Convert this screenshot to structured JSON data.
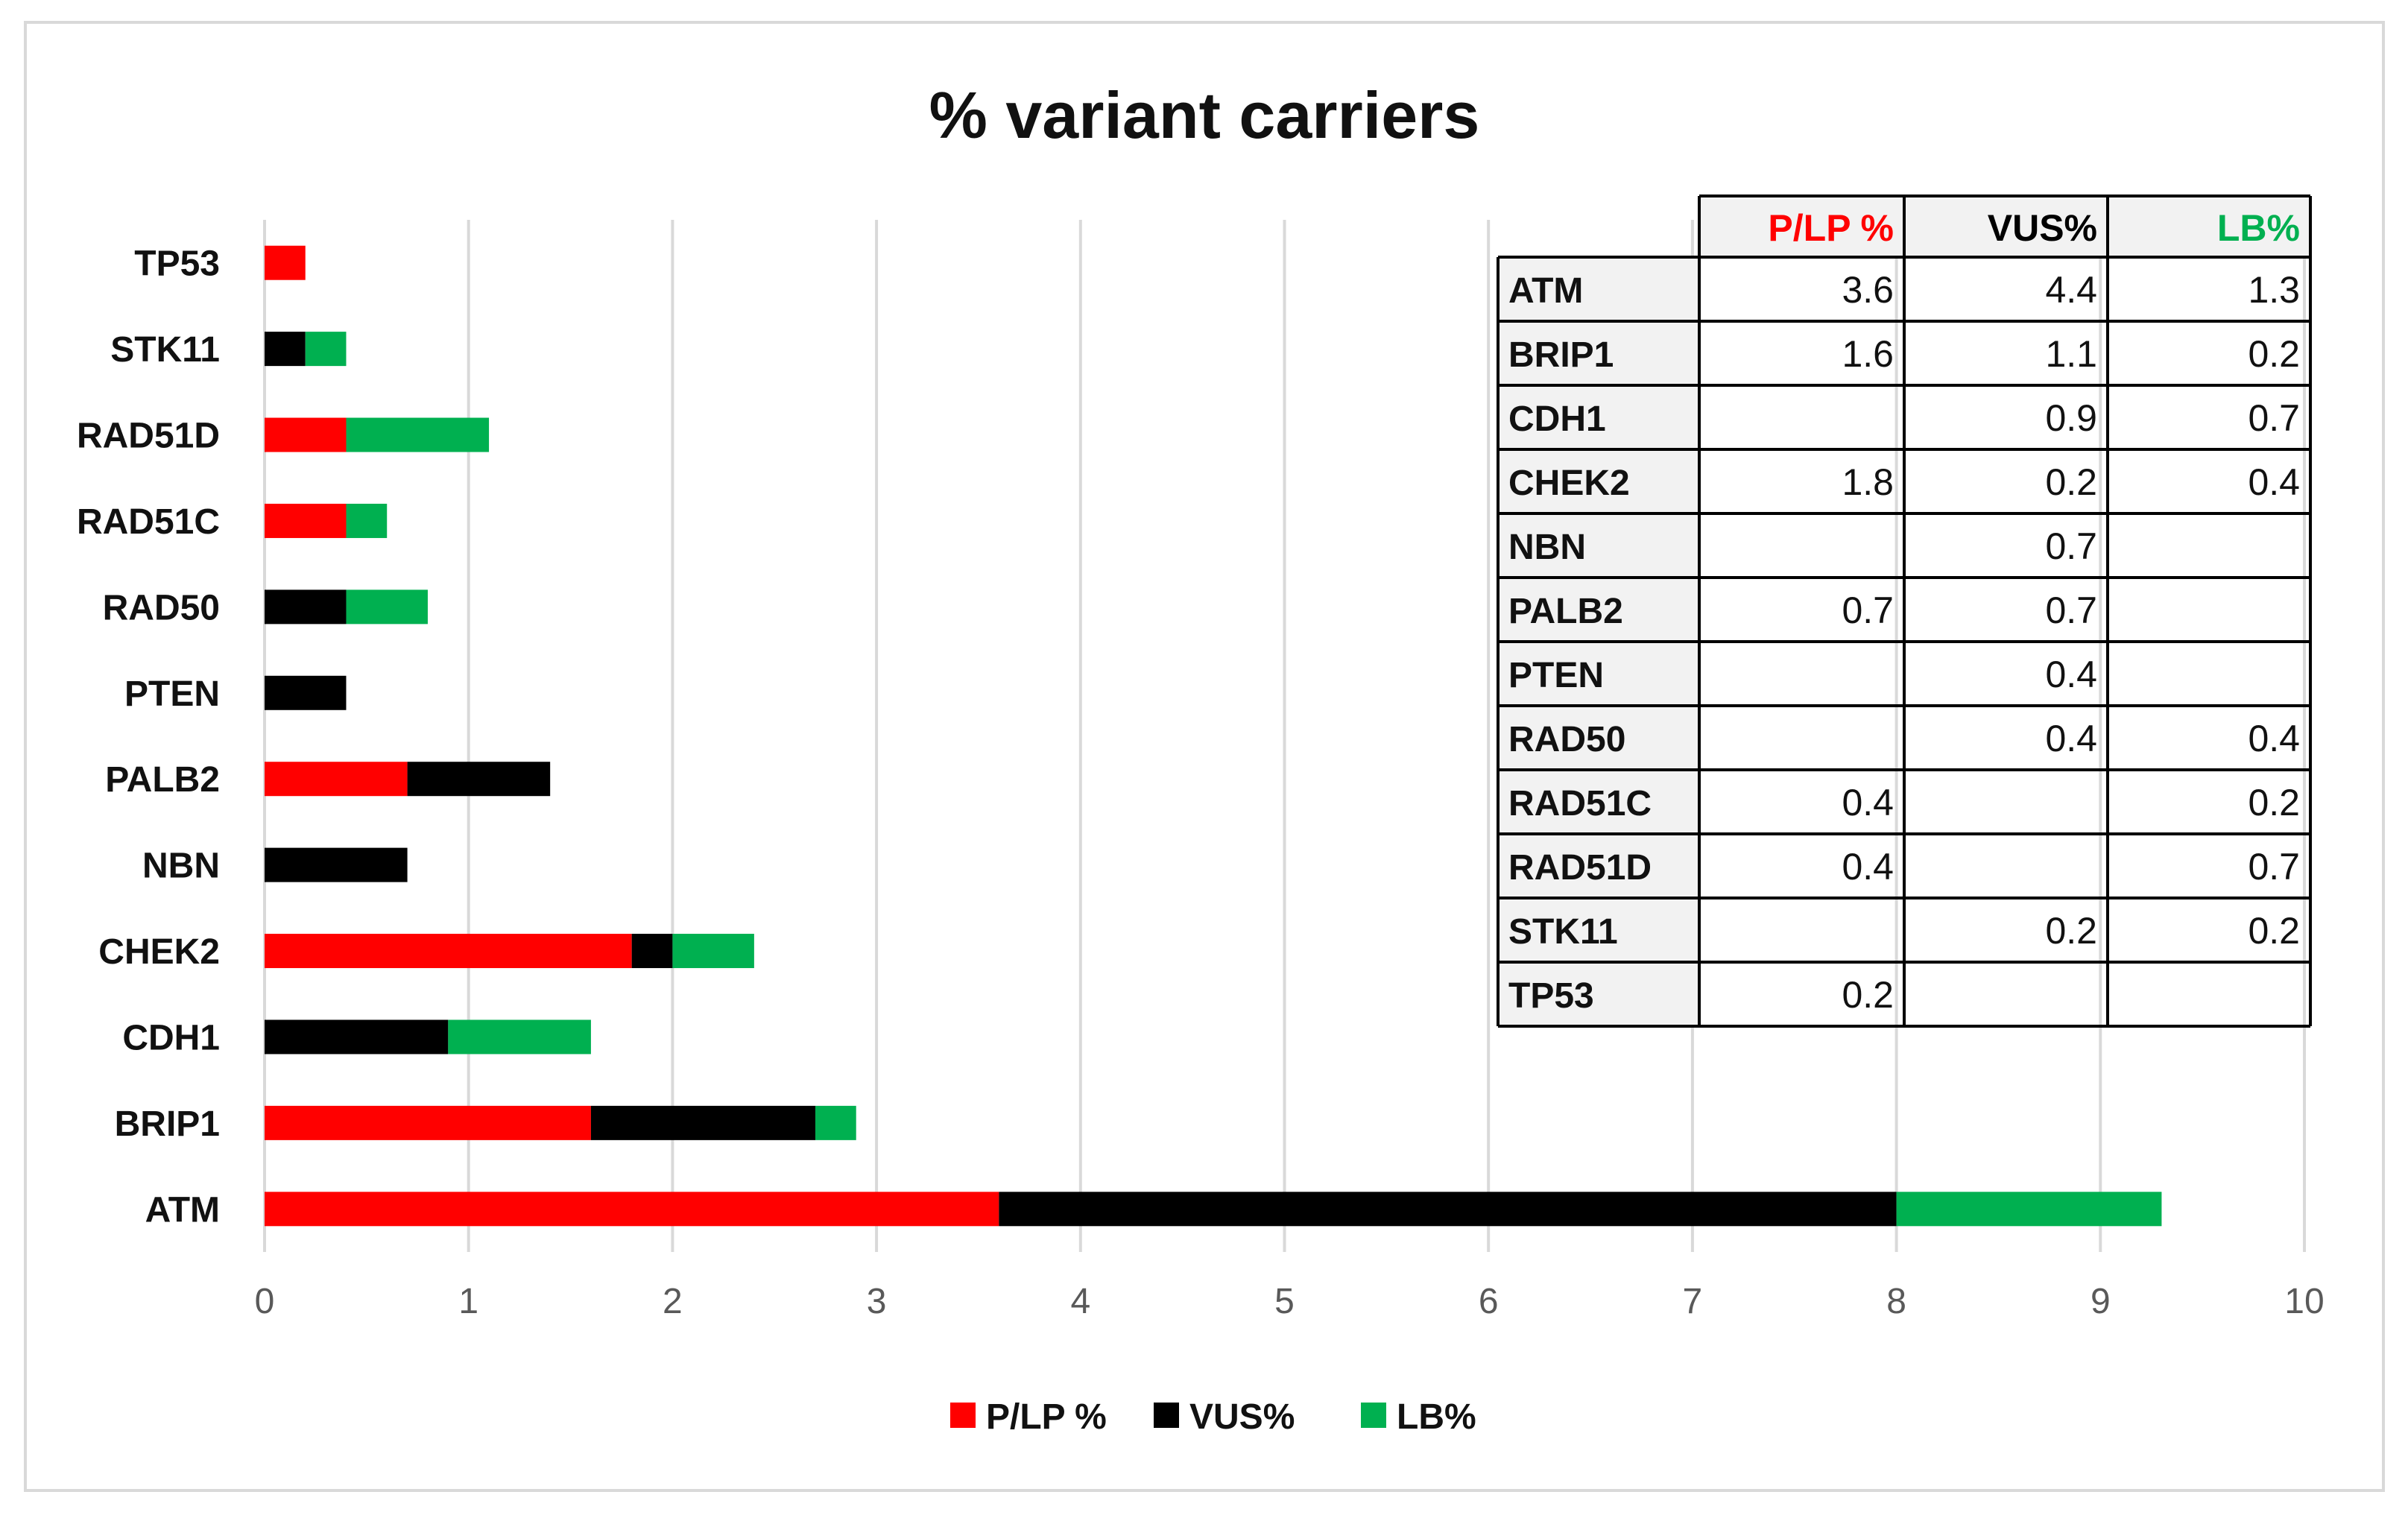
{
  "chart_data": {
    "type": "bar",
    "orientation": "horizontal",
    "stacked": true,
    "title": "% variant carriers",
    "xlabel": "",
    "ylabel": "",
    "xlim": [
      0,
      10
    ],
    "x_ticks": [
      "0",
      "1",
      "2",
      "3",
      "4",
      "5",
      "6",
      "7",
      "8",
      "9",
      "10"
    ],
    "grid": "vertical",
    "legend_position": "bottom",
    "categories": [
      "ATM",
      "BRIP1",
      "CDH1",
      "CHEK2",
      "NBN",
      "PALB2",
      "PTEN",
      "RAD50",
      "RAD51C",
      "RAD51D",
      "STK11",
      "TP53"
    ],
    "series": [
      {
        "name": "P/LP %",
        "color": "#ff0000",
        "values": [
          3.6,
          1.6,
          0,
          1.8,
          0,
          0.7,
          0,
          0,
          0.4,
          0.4,
          0,
          0.2
        ]
      },
      {
        "name": "VUS%",
        "color": "#000000",
        "values": [
          4.4,
          1.1,
          0.9,
          0.2,
          0.7,
          0.7,
          0.4,
          0.4,
          0,
          0,
          0.2,
          0
        ]
      },
      {
        "name": "LB%",
        "color": "#00b050",
        "values": [
          1.3,
          0.2,
          0.7,
          0.4,
          0,
          0,
          0,
          0.4,
          0.2,
          0.7,
          0.2,
          0
        ]
      }
    ],
    "table": {
      "headers": [
        "",
        "P/LP %",
        "VUS%",
        "LB%"
      ],
      "header_colors": [
        "#000000",
        "#ff0000",
        "#000000",
        "#00b050"
      ],
      "rows": [
        [
          "ATM",
          "3.6",
          "4.4",
          "1.3"
        ],
        [
          "BRIP1",
          "1.6",
          "1.1",
          "0.2"
        ],
        [
          "CDH1",
          "",
          "0.9",
          "0.7"
        ],
        [
          "CHEK2",
          "1.8",
          "0.2",
          "0.4"
        ],
        [
          "NBN",
          "",
          "0.7",
          ""
        ],
        [
          "PALB2",
          "0.7",
          "0.7",
          ""
        ],
        [
          "PTEN",
          "",
          "0.4",
          ""
        ],
        [
          "RAD50",
          "",
          "0.4",
          "0.4"
        ],
        [
          "RAD51C",
          "0.4",
          "",
          "0.2"
        ],
        [
          "RAD51D",
          "0.4",
          "",
          "0.7"
        ],
        [
          "STK11",
          "",
          "0.2",
          "0.2"
        ],
        [
          "TP53",
          "0.2",
          "",
          ""
        ]
      ]
    }
  }
}
